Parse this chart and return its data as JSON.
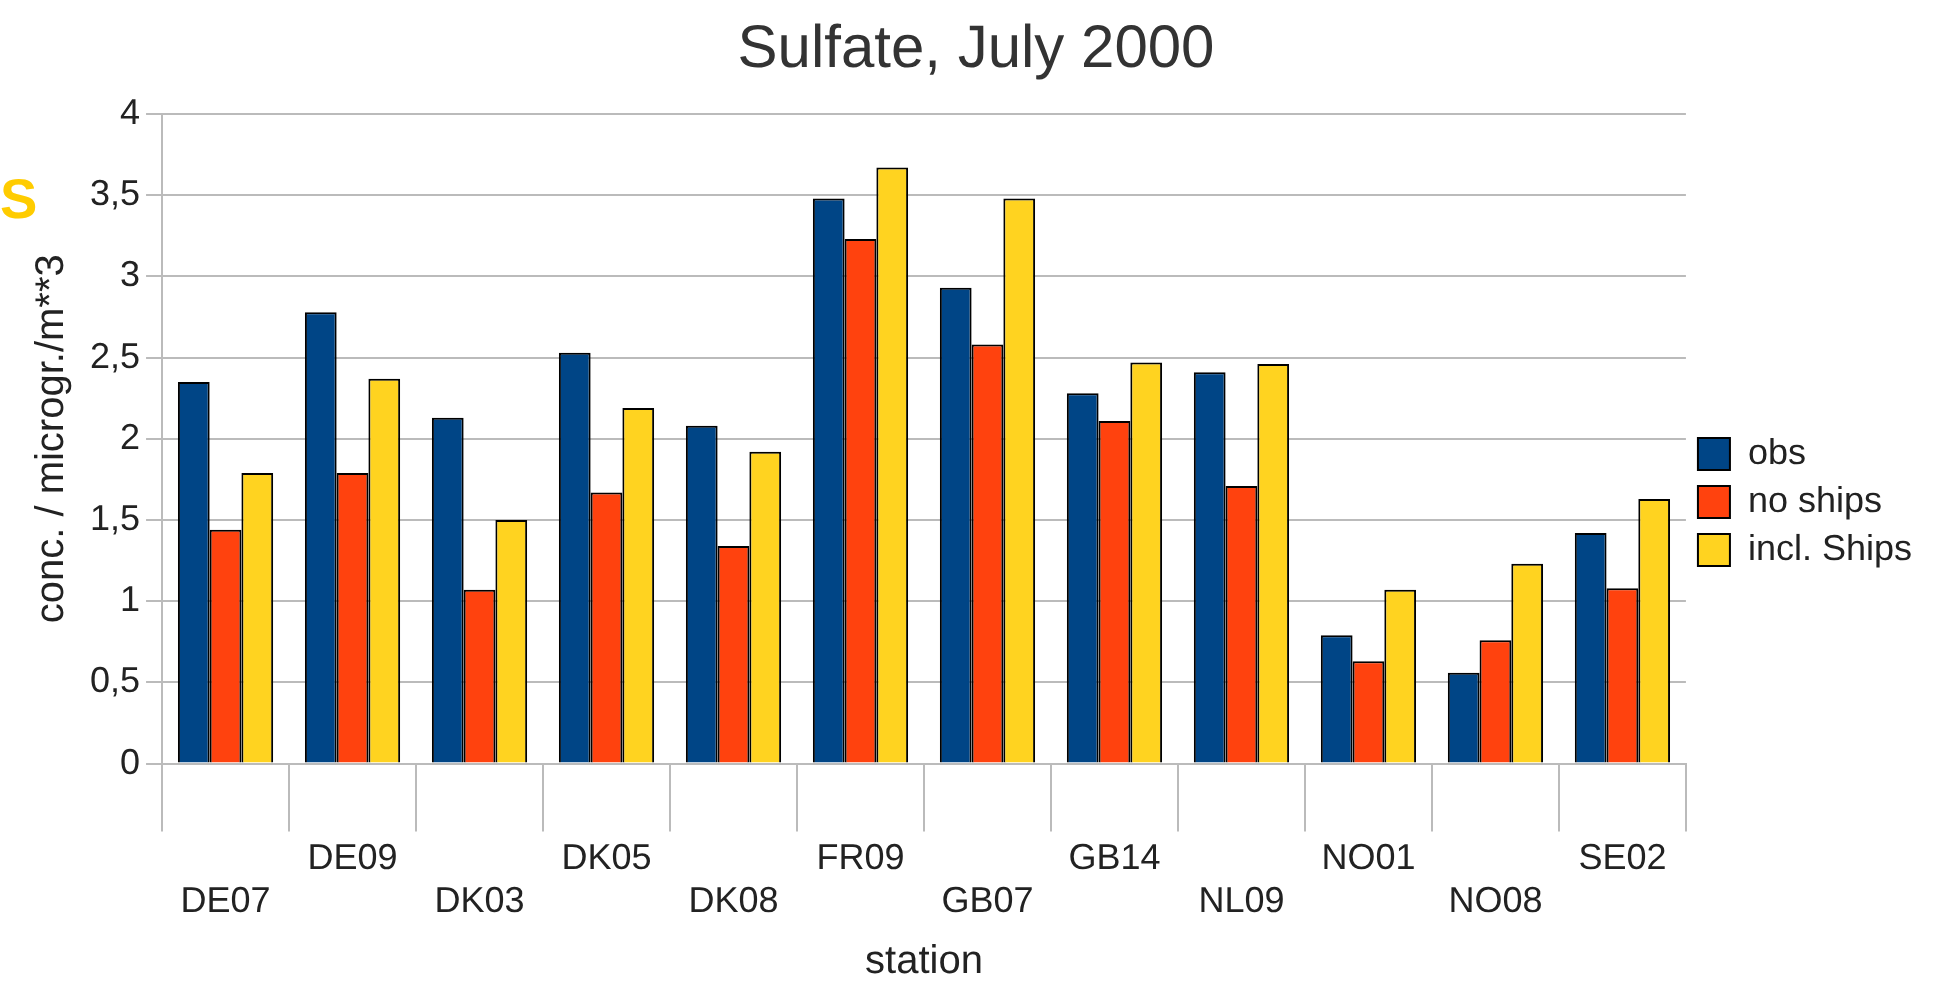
{
  "chart_data": {
    "type": "bar",
    "title": "Sulfate, July 2000",
    "xlabel": "station",
    "ylabel": "conc. / microgr./m**3",
    "annotations": [
      "S"
    ],
    "categories": [
      "DE07",
      "DE09",
      "DK03",
      "DK05",
      "DK08",
      "FR09",
      "GB07",
      "GB14",
      "NL09",
      "NO01",
      "NO08",
      "SE02"
    ],
    "series": [
      {
        "name": "obs",
        "color": "#004586",
        "values": [
          2.35,
          2.78,
          2.13,
          2.53,
          2.08,
          3.48,
          2.93,
          2.28,
          2.41,
          0.79,
          0.56,
          1.42
        ]
      },
      {
        "name": "no ships",
        "color": "#ff420e",
        "values": [
          1.44,
          1.79,
          1.07,
          1.67,
          1.34,
          3.23,
          2.58,
          2.11,
          1.71,
          0.63,
          0.76,
          1.08
        ]
      },
      {
        "name": "incl. Ships",
        "color": "#ffd320",
        "values": [
          1.79,
          2.37,
          1.5,
          2.19,
          1.92,
          3.67,
          3.48,
          2.47,
          2.46,
          1.07,
          1.23,
          1.63
        ]
      }
    ],
    "ylim": [
      0,
      4
    ],
    "yticks": [
      0,
      {
        "value": 0.5,
        "label": "0,5"
      },
      1,
      {
        "value": 1.5,
        "label": "1,5"
      },
      2,
      {
        "value": 2.5,
        "label": "2,5"
      },
      3,
      {
        "value": 3.5,
        "label": "3,5"
      },
      4
    ],
    "grid": "y",
    "legend": "right"
  }
}
